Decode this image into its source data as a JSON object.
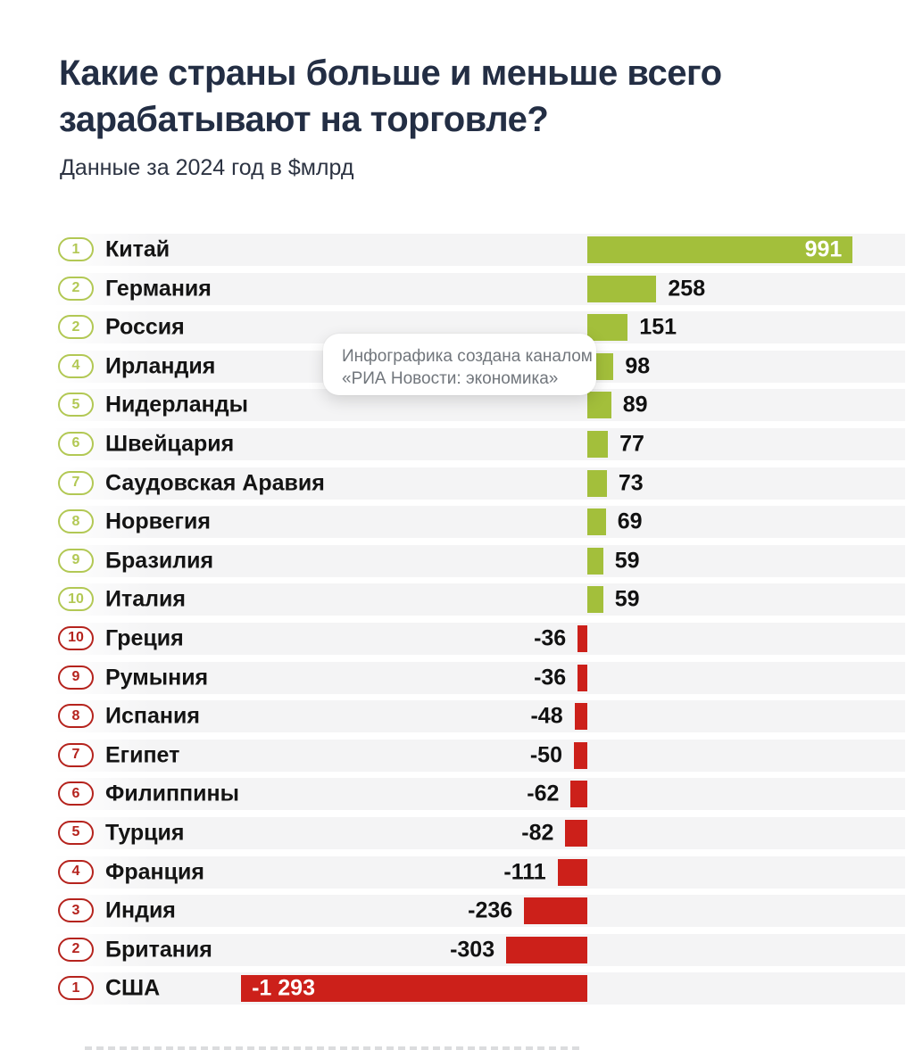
{
  "header": {
    "title": "Какие страны больше и меньше всего зарабатывают на торговле?",
    "subtitle": "Данные за 2024 год в $млрд"
  },
  "tooltip": {
    "line1": "Инфографика создана каналом",
    "line2": "«РИА Новости: экономика»"
  },
  "colors": {
    "positive_bar": "#a3bf3b",
    "negative_bar": "#cc201a",
    "positive_badge": "#b2c854",
    "negative_badge": "#b5231d",
    "title_text": "#232e44",
    "row_stripe": "#f4f4f5",
    "tooltip_text": "#71767c"
  },
  "chart_data": {
    "type": "bar",
    "orientation": "horizontal",
    "title": "Какие страны больше и меньше всего зарабатывают на торговле?",
    "subtitle": "Данные за 2024 год в $млрд",
    "unit": "$млрд",
    "year": "2024",
    "xlim": [
      -1293,
      991
    ],
    "grid": false,
    "legend": false,
    "rows": [
      {
        "rank": "1",
        "country": "Китай",
        "value": 991,
        "value_label": "991",
        "label_inside": true
      },
      {
        "rank": "2",
        "country": "Германия",
        "value": 258,
        "value_label": "258",
        "label_inside": false
      },
      {
        "rank": "2",
        "country": "Россия",
        "value": 151,
        "value_label": "151",
        "label_inside": false
      },
      {
        "rank": "4",
        "country": "Ирландия",
        "value": 98,
        "value_label": "98",
        "label_inside": false
      },
      {
        "rank": "5",
        "country": "Нидерланды",
        "value": 89,
        "value_label": "89",
        "label_inside": false
      },
      {
        "rank": "6",
        "country": "Швейцария",
        "value": 77,
        "value_label": "77",
        "label_inside": false
      },
      {
        "rank": "7",
        "country": "Саудовская Аравия",
        "value": 73,
        "value_label": "73",
        "label_inside": false
      },
      {
        "rank": "8",
        "country": "Норвегия",
        "value": 69,
        "value_label": "69",
        "label_inside": false
      },
      {
        "rank": "9",
        "country": "Бразилия",
        "value": 59,
        "value_label": "59",
        "label_inside": false
      },
      {
        "rank": "10",
        "country": "Италия",
        "value": 59,
        "value_label": "59",
        "label_inside": false
      },
      {
        "rank": "10",
        "country": "Греция",
        "value": -36,
        "value_label": "-36",
        "label_inside": false
      },
      {
        "rank": "9",
        "country": "Румыния",
        "value": -36,
        "value_label": "-36",
        "label_inside": false
      },
      {
        "rank": "8",
        "country": "Испания",
        "value": -48,
        "value_label": "-48",
        "label_inside": false
      },
      {
        "rank": "7",
        "country": "Египет",
        "value": -50,
        "value_label": "-50",
        "label_inside": false
      },
      {
        "rank": "6",
        "country": "Филиппины",
        "value": -62,
        "value_label": "-62",
        "label_inside": false
      },
      {
        "rank": "5",
        "country": "Турция",
        "value": -82,
        "value_label": "-82",
        "label_inside": false
      },
      {
        "rank": "4",
        "country": "Франция",
        "value": -111,
        "value_label": "-111",
        "label_inside": false
      },
      {
        "rank": "3",
        "country": "Индия",
        "value": -236,
        "value_label": "-236",
        "label_inside": false
      },
      {
        "rank": "2",
        "country": "Британия",
        "value": -303,
        "value_label": "-303",
        "label_inside": false
      },
      {
        "rank": "1",
        "country": "США",
        "value": -1293,
        "value_label": "-1 293",
        "label_inside": true
      }
    ]
  }
}
